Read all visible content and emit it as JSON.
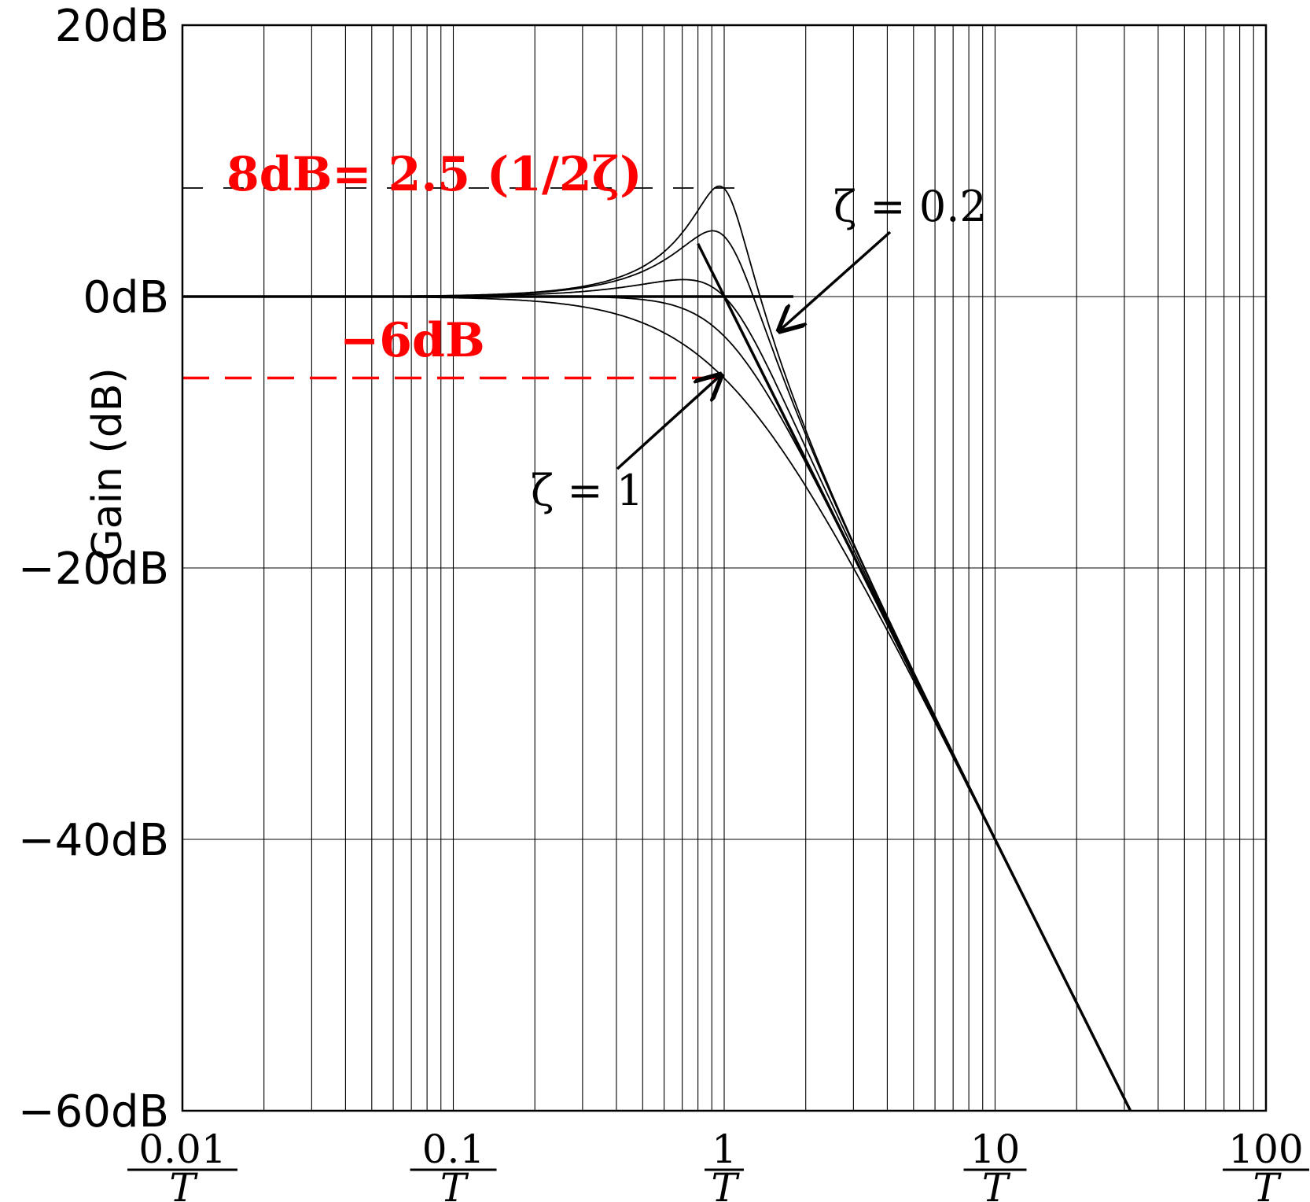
{
  "chart_data": {
    "type": "line",
    "title": "",
    "xlabel": "",
    "ylabel": "Gain (dB)",
    "x_scale": "log",
    "xlim": [
      0.01,
      100
    ],
    "ylim": [
      -60,
      20
    ],
    "grid": true,
    "y_ticks": [
      {
        "value": 20,
        "label": "20dB"
      },
      {
        "value": 0,
        "label": "0dB"
      },
      {
        "value": -20,
        "label": "−20dB"
      },
      {
        "value": -40,
        "label": "−40dB"
      },
      {
        "value": -60,
        "label": "−60dB"
      }
    ],
    "x_ticks": [
      {
        "value": 0.01,
        "num": "0.01",
        "den": "T"
      },
      {
        "value": 0.1,
        "num": "0.1",
        "den": "T"
      },
      {
        "value": 1,
        "num": "1",
        "den": "T"
      },
      {
        "value": 10,
        "num": "10",
        "den": "T"
      },
      {
        "value": 100,
        "num": "100",
        "den": "T"
      }
    ],
    "series": [
      {
        "zeta": 0.2,
        "color": "#000000"
      },
      {
        "zeta": 0.3,
        "color": "#000000"
      },
      {
        "zeta": 0.5,
        "color": "#000000"
      },
      {
        "zeta": 0.7,
        "color": "#000000"
      },
      {
        "zeta": 1.0,
        "color": "#000000"
      }
    ],
    "asymptotes": [
      {
        "x": [
          0.01,
          1.8
        ],
        "y": [
          0,
          0
        ]
      },
      {
        "x": [
          0.8,
          31.6
        ],
        "y": [
          3.9,
          -60
        ]
      }
    ],
    "reference_lines": [
      {
        "y": 8,
        "x": [
          0.01,
          1.1
        ],
        "color": "#000000",
        "dash": "dashed"
      },
      {
        "y": -6,
        "x": [
          0.01,
          1.0
        ],
        "color": "#ff0000",
        "dash": "dashed"
      }
    ],
    "annotations": [
      {
        "id": "peak",
        "text": "8dB= 2.5 (1/2ζ)",
        "color": "#ff0000"
      },
      {
        "id": "minus6",
        "text": "−6dB",
        "color": "#ff0000"
      },
      {
        "id": "zeta02",
        "text": "ζ = 0.2",
        "color": "#000000",
        "arrow_to": {
          "x": 1.6,
          "y": -2.5
        }
      },
      {
        "id": "zeta1",
        "text": "ζ = 1",
        "color": "#000000",
        "arrow_to": {
          "x": 0.97,
          "y": -5.8
        }
      }
    ]
  }
}
